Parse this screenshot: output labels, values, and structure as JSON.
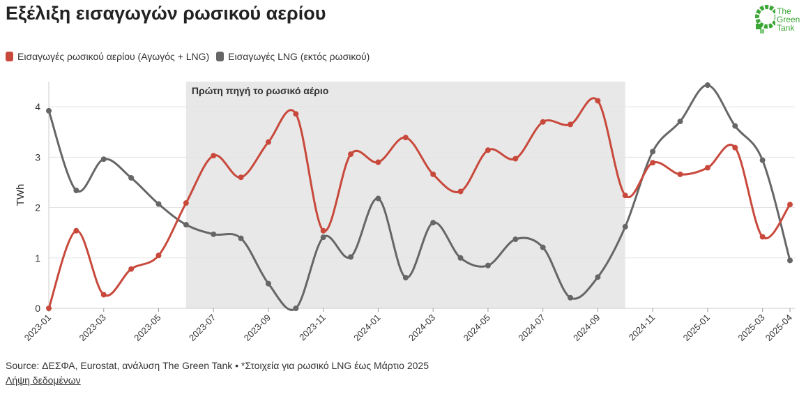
{
  "title": "Εξέλιξη εισαγωγών ρωσικού αερίου",
  "logo": {
    "line1": "The",
    "line2": "Green",
    "line3": "Tank",
    "color": "#3aa634",
    "icon": "green-tank-logo-icon"
  },
  "footer": {
    "source": "Source: ΔΕΣΦΑ, Eurostat, ανάλυση The Green Tank • *Στοιχεία για ρωσικό LNG έως Μάρτιο 2025",
    "link": "Λήψη δεδομένων"
  },
  "chart_data": {
    "type": "line",
    "ylabel": "TWh",
    "ylim": [
      0,
      4.5
    ],
    "yticks": [
      0,
      1,
      2,
      3,
      4
    ],
    "grid": true,
    "legend_position": "top-left",
    "x": [
      "2023-01",
      "2023-02",
      "2023-03",
      "2023-04",
      "2023-05",
      "2023-06",
      "2023-07",
      "2023-08",
      "2023-09",
      "2023-10",
      "2023-11",
      "2023-12",
      "2024-01",
      "2024-02",
      "2024-03",
      "2024-04",
      "2024-05",
      "2024-06",
      "2024-07",
      "2024-08",
      "2024-09",
      "2024-10",
      "2024-11",
      "2024-12",
      "2025-01",
      "2025-02",
      "2025-03",
      "2025-04"
    ],
    "xticks": [
      "2023-01",
      "2023-03",
      "2023-05",
      "2023-07",
      "2023-09",
      "2023-11",
      "2024-01",
      "2024-03",
      "2024-05",
      "2024-07",
      "2024-09",
      "2024-11",
      "2025-01",
      "2025-03",
      "2025-04"
    ],
    "series": [
      {
        "name": "Εισαγωγές ρωσικού αερίου (Αγωγός + LNG)",
        "color": "#c8493c",
        "values": [
          0.0,
          1.54,
          0.27,
          0.78,
          1.05,
          2.09,
          3.03,
          2.6,
          3.3,
          3.86,
          1.54,
          3.06,
          2.9,
          3.39,
          2.66,
          2.32,
          3.14,
          2.97,
          3.7,
          3.65,
          4.12,
          2.24,
          2.89,
          2.66,
          2.79,
          3.19,
          1.42,
          2.06
        ]
      },
      {
        "name": "Εισαγωγές LNG (εκτός ρωσικού)",
        "color": "#666666",
        "values": [
          3.92,
          2.34,
          2.96,
          2.59,
          2.07,
          1.66,
          1.47,
          1.39,
          0.49,
          0.0,
          1.41,
          1.02,
          2.18,
          0.61,
          1.7,
          1.0,
          0.85,
          1.37,
          1.21,
          0.21,
          0.62,
          1.62,
          3.11,
          3.71,
          4.43,
          3.62,
          2.94,
          0.95
        ]
      }
    ],
    "annotation": {
      "label": "Πρώτη πηγή το ρωσικό αέριο",
      "from": "2023-06",
      "to": "2024-10",
      "color": "#e8e8e8"
    }
  }
}
